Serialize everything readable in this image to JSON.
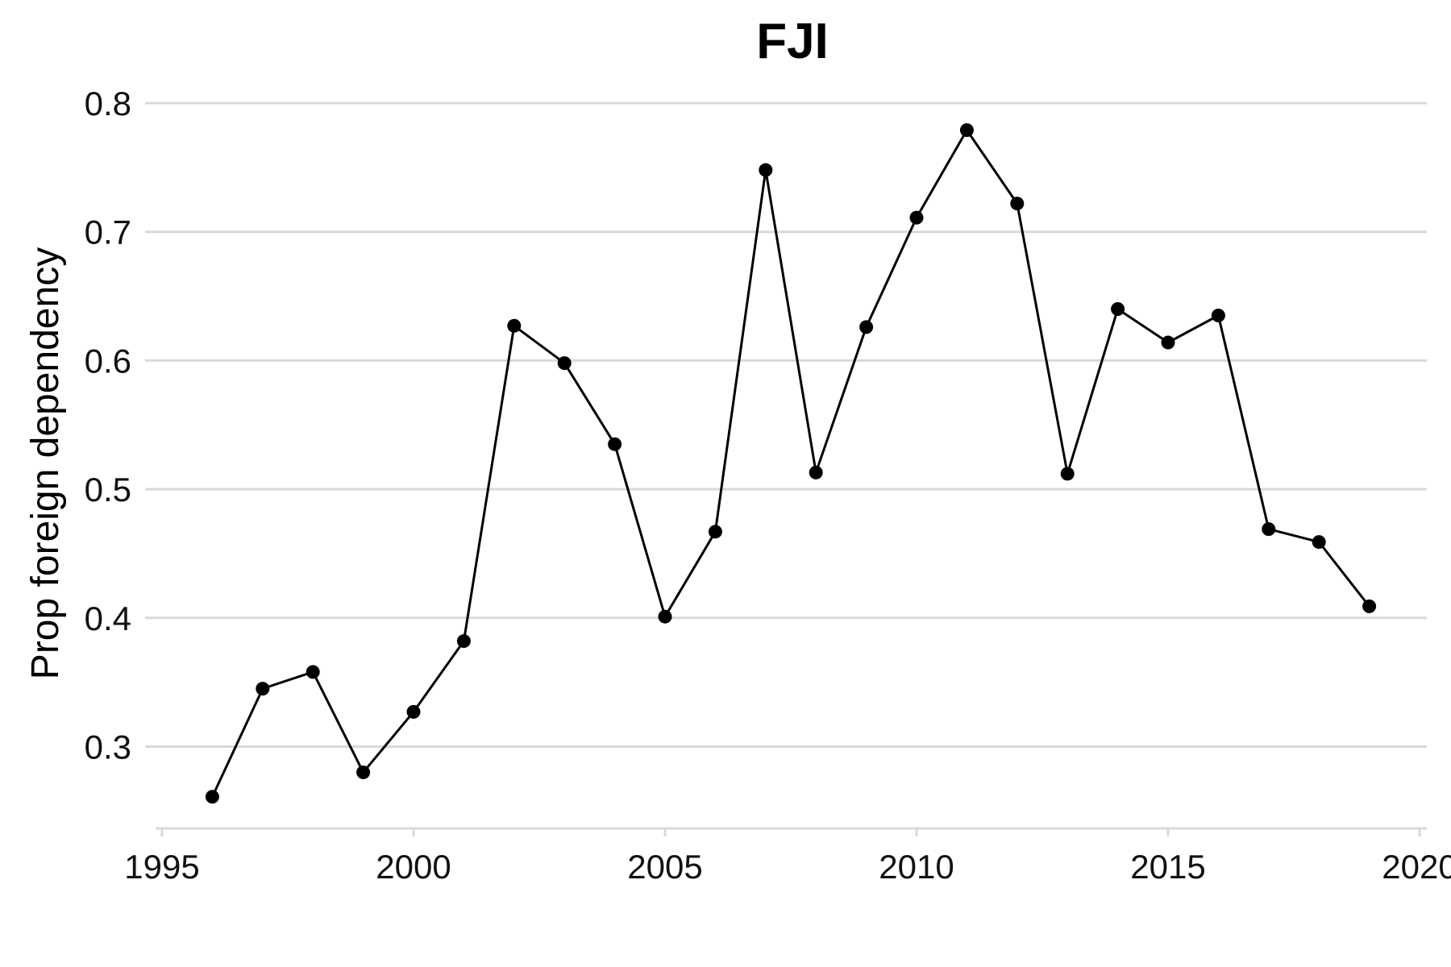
{
  "chart_data": {
    "type": "line",
    "title": "FJI",
    "xlabel": "",
    "ylabel": "Prop foreign dependency",
    "xlim": [
      1995,
      2020
    ],
    "ylim": [
      0.235,
      0.8
    ],
    "x_ticks": [
      1995,
      2000,
      2005,
      2010,
      2015,
      2020
    ],
    "y_ticks": [
      0.3,
      0.4,
      0.5,
      0.6,
      0.7,
      0.8
    ],
    "grid": "horizontal",
    "x": [
      1996,
      1997,
      1998,
      1999,
      2000,
      2001,
      2002,
      2003,
      2004,
      2005,
      2006,
      2007,
      2008,
      2009,
      2010,
      2011,
      2012,
      2013,
      2014,
      2015,
      2016,
      2017,
      2018,
      2019
    ],
    "series": [
      {
        "values": [
          0.261,
          0.345,
          0.358,
          0.28,
          0.327,
          0.382,
          0.627,
          0.598,
          0.535,
          0.401,
          0.467,
          0.748,
          0.513,
          0.626,
          0.711,
          0.779,
          0.722,
          0.512,
          0.64,
          0.614,
          0.635,
          0.469,
          0.459,
          0.409
        ],
        "color": "#000000",
        "markers": true
      }
    ]
  }
}
